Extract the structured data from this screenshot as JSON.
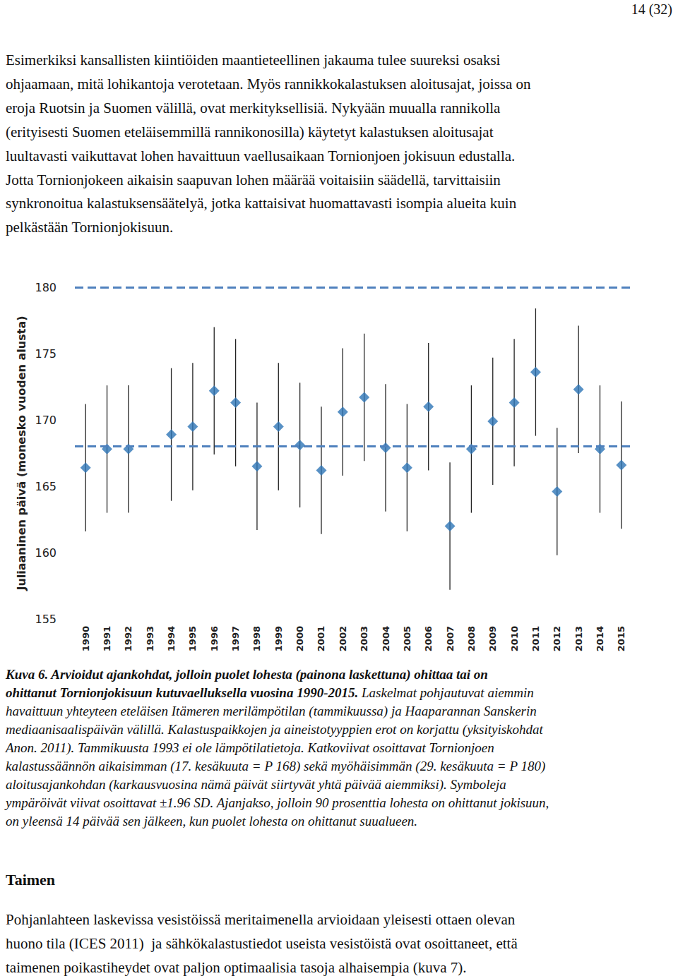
{
  "header": {
    "page": "14 (32)"
  },
  "paragraph_lines": [
    "Esimerkiksi kansallisten kiintiöiden maantieteellinen jakauma tulee suureksi osaksi",
    "ohjaamaan, mitä lohikantoja verotetaan. Myös rannikkokalastuksen aloitusajat, joissa on",
    "eroja Ruotsin ja Suomen välillä, ovat merkityksellisiä. Nykyään muualla rannikolla",
    "(erityisesti Suomen eteläisemmillä rannikonosilla) käytetyt kalastuksen aloitusajat",
    "luultavasti vaikuttavat lohen havaittuun vaellusaikaan Tornionjoen jokisuun edustalla.",
    "Jotta Tornionjokeen aikaisin saapuvan lohen määrää voitaisiin säädellä, tarvittaisiin",
    "synkronoitua kalastuksensäätelyä, jotka kattaisivat huomattavasti isompia alueita kuin",
    "pelkästään Tornionjokisuun."
  ],
  "chart_data": {
    "type": "scatter",
    "ylabel": "Juliaaninen päivä (monesko vuoden alusta)",
    "categories": [
      "1990",
      "1991",
      "1992",
      "1993",
      "1994",
      "1995",
      "1996",
      "1997",
      "1998",
      "1999",
      "2000",
      "2001",
      "2002",
      "2003",
      "2004",
      "2005",
      "2006",
      "2007",
      "2008",
      "2009",
      "2010",
      "2011",
      "2012",
      "2013",
      "2014",
      "2015"
    ],
    "values": [
      166.4,
      167.8,
      167.8,
      null,
      168.9,
      169.5,
      172.2,
      171.3,
      166.5,
      169.5,
      168.1,
      166.2,
      170.6,
      171.7,
      167.9,
      166.4,
      171.0,
      162.0,
      167.8,
      169.9,
      171.3,
      173.6,
      164.6,
      172.3,
      167.8,
      166.6
    ],
    "errors": [
      4.8,
      4.8,
      4.8,
      null,
      5.0,
      4.8,
      4.8,
      4.8,
      4.8,
      4.8,
      4.7,
      4.8,
      4.8,
      4.8,
      4.8,
      4.8,
      4.8,
      4.8,
      4.8,
      4.8,
      4.8,
      4.8,
      4.8,
      4.8,
      4.8,
      4.8
    ],
    "reference_lines": [
      168,
      180
    ],
    "line_style": "dashed",
    "marker": "diamond",
    "color": "#2e75b6",
    "ylim": [
      155,
      180
    ],
    "yticks": [
      155,
      160,
      165,
      170,
      175,
      180
    ],
    "grid": false
  },
  "caption_lines": [
    [
      {
        "text": "Kuva 6. Arvioidut ajankohdat, jolloin puolet lohesta (painona laskettuna) ohittaa tai on",
        "bold": true
      }
    ],
    [
      {
        "text": "ohittanut Tornionjokisuun kutuvaelluksella vuosina 1990-2015.",
        "bold": true
      },
      {
        "text": "Laskelmat pohjautuvat aiemmin",
        "bold": false
      }
    ],
    [
      {
        "text": "havaittuun yhteyteen eteläisen Itämeren merilämpötilan (tammikuussa) ja Haaparannan Sanskerin",
        "bold": false
      }
    ],
    [
      {
        "text": "mediaanisaalispäivän välillä. Kalastuspaikkojen ja aineistotyyppien erot on korjattu (yksityiskohdat",
        "bold": false
      }
    ],
    [
      {
        "text": "Anon. 2011). Tammikuusta 1993 ei ole lämpötilatietoja. Katkoviivat osoittavat Tornionjoen",
        "bold": false
      }
    ],
    [
      {
        "text": "kalastussäännön aikaisimman (17. kesäkuuta = P 168) sekä myöhäisimmän (29. kesäkuuta = P 180)",
        "bold": false
      }
    ],
    [
      {
        "text": "aloitusajankohdan (karkausvuosina nämä päivät siirtyvät yhtä päivää aiemmiksi). Symboleja",
        "bold": false
      }
    ],
    [
      {
        "text": "ympäröivät viivat osoittavat ±1.96 SD. Ajanjakso, jolloin 90 prosenttia lohesta on ohittanut jokisuun,",
        "bold": false
      }
    ],
    [
      {
        "text": "on yleensä 14 päivää sen jälkeen, kun puolet lohesta on ohittanut suualueen.",
        "bold": false
      }
    ]
  ],
  "section": {
    "heading": "Taimen",
    "paragraph_lines": [
      "Pohjanlahteen laskevissa vesistöissä meritaimenella arvioidaan yleisesti ottaen olevan",
      "huono tila (ICES 2011)  ja sähkökalastustiedot useista vesistöistä ovat osoittaneet, että",
      "taimenen poikastiheydet ovat paljon optimaalisia tasoja alhaisempia (kuva 7)."
    ]
  }
}
